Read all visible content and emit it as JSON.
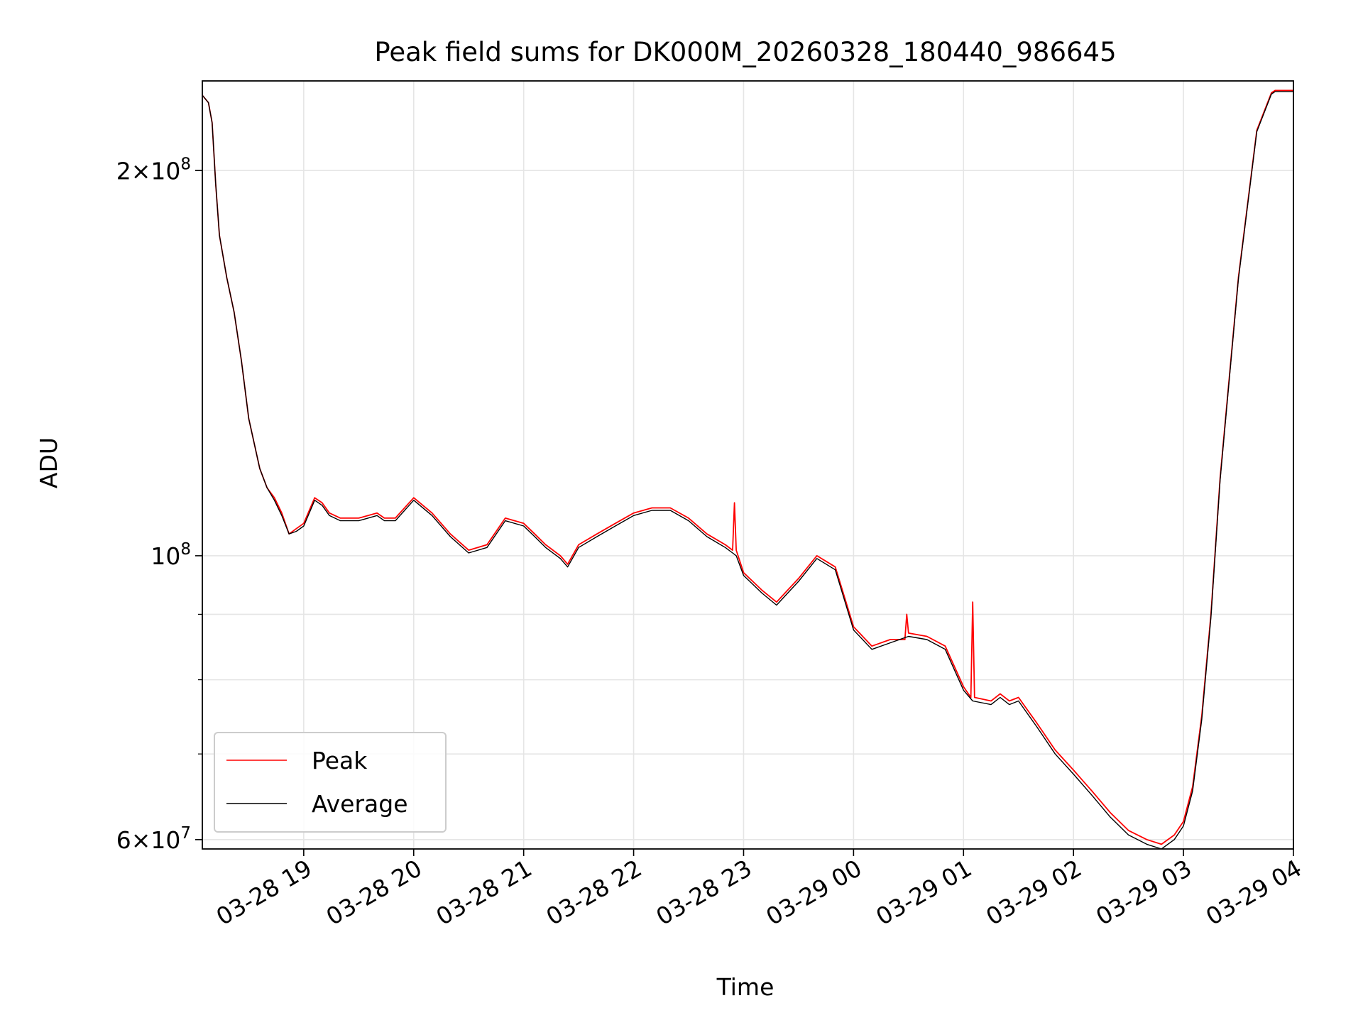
{
  "chart_data": {
    "type": "line",
    "title": "Peak field sums for DK000M_20260328_180440_986645",
    "xlabel": "Time",
    "ylabel": "ADU",
    "y_scale": "log",
    "ylim": [
      59000000,
      235000000
    ],
    "xlim": [
      "2026-03-28 18:04:40",
      "2026-03-29 04:00:00"
    ],
    "grid": true,
    "legend_position": "lower-left",
    "x_ticks": [
      {
        "t": "2026-03-28 19:00",
        "label": "03-28 19"
      },
      {
        "t": "2026-03-28 20:00",
        "label": "03-28 20"
      },
      {
        "t": "2026-03-28 21:00",
        "label": "03-28 21"
      },
      {
        "t": "2026-03-28 22:00",
        "label": "03-28 22"
      },
      {
        "t": "2026-03-28 23:00",
        "label": "03-28 23"
      },
      {
        "t": "2026-03-29 00:00",
        "label": "03-29 00"
      },
      {
        "t": "2026-03-29 01:00",
        "label": "03-29 01"
      },
      {
        "t": "2026-03-29 02:00",
        "label": "03-29 02"
      },
      {
        "t": "2026-03-29 03:00",
        "label": "03-29 03"
      },
      {
        "t": "2026-03-29 04:00",
        "label": "03-29 04"
      }
    ],
    "y_major_ticks": [
      {
        "value": 60000000,
        "mantissa": "6",
        "exponent": "7"
      },
      {
        "value": 100000000,
        "mantissa": "",
        "exponent": "8"
      },
      {
        "value": 200000000,
        "mantissa": "2",
        "exponent": "8"
      }
    ],
    "y_minor_ticks": [
      70000000,
      80000000,
      90000000
    ],
    "series": [
      {
        "name": "Peak",
        "color": "#ff0000",
        "x": [
          "2026-03-28 18:04:40",
          "2026-03-28 18:08",
          "2026-03-28 18:10",
          "2026-03-28 18:12",
          "2026-03-28 18:14",
          "2026-03-28 18:18",
          "2026-03-28 18:22",
          "2026-03-28 18:26",
          "2026-03-28 18:30",
          "2026-03-28 18:36",
          "2026-03-28 18:40",
          "2026-03-28 18:44",
          "2026-03-28 18:48",
          "2026-03-28 18:52",
          "2026-03-28 18:56",
          "2026-03-28 19:00",
          "2026-03-28 19:06",
          "2026-03-28 19:10",
          "2026-03-28 19:14",
          "2026-03-28 19:20",
          "2026-03-28 19:30",
          "2026-03-28 19:40",
          "2026-03-28 19:44",
          "2026-03-28 19:50",
          "2026-03-28 20:00",
          "2026-03-28 20:10",
          "2026-03-28 20:20",
          "2026-03-28 20:30",
          "2026-03-28 20:40",
          "2026-03-28 20:50",
          "2026-03-28 21:00",
          "2026-03-28 21:06",
          "2026-03-28 21:12",
          "2026-03-28 21:20",
          "2026-03-28 21:24",
          "2026-03-28 21:30",
          "2026-03-28 21:40",
          "2026-03-28 21:50",
          "2026-03-28 22:00",
          "2026-03-28 22:10",
          "2026-03-28 22:20",
          "2026-03-28 22:30",
          "2026-03-28 22:40",
          "2026-03-28 22:50",
          "2026-03-28 22:54",
          "2026-03-28 22:55",
          "2026-03-28 22:56",
          "2026-03-28 23:00",
          "2026-03-28 23:10",
          "2026-03-28 23:18",
          "2026-03-28 23:30",
          "2026-03-28 23:40",
          "2026-03-28 23:50",
          "2026-03-29 00:00",
          "2026-03-29 00:10",
          "2026-03-29 00:20",
          "2026-03-29 00:28",
          "2026-03-29 00:29",
          "2026-03-29 00:30",
          "2026-03-29 00:40",
          "2026-03-29 00:50",
          "2026-03-29 01:00",
          "2026-03-29 01:04",
          "2026-03-29 01:05",
          "2026-03-29 01:06",
          "2026-03-29 01:15",
          "2026-03-29 01:20",
          "2026-03-29 01:25",
          "2026-03-29 01:30",
          "2026-03-29 01:40",
          "2026-03-29 01:50",
          "2026-03-29 02:00",
          "2026-03-29 02:10",
          "2026-03-29 02:20",
          "2026-03-29 02:30",
          "2026-03-29 02:40",
          "2026-03-29 02:48",
          "2026-03-29 02:55",
          "2026-03-29 03:00",
          "2026-03-29 03:05",
          "2026-03-29 03:10",
          "2026-03-29 03:15",
          "2026-03-29 03:20",
          "2026-03-29 03:30",
          "2026-03-29 03:40",
          "2026-03-29 03:48",
          "2026-03-29 03:50",
          "2026-03-29 04:00"
        ],
        "y": [
          229000000,
          226000000,
          218000000,
          195000000,
          178000000,
          165000000,
          155000000,
          142000000,
          128000000,
          117000000,
          113000000,
          111000000,
          108000000,
          104000000,
          105000000,
          106000000,
          111000000,
          110000000,
          108000000,
          107000000,
          107000000,
          108000000,
          107000000,
          107000000,
          111000000,
          108000000,
          104000000,
          101000000,
          102000000,
          107000000,
          106000000,
          104000000,
          102000000,
          100000000,
          98500000,
          102000000,
          104000000,
          106000000,
          108000000,
          109000000,
          109000000,
          107000000,
          104000000,
          102000000,
          101000000,
          110000000,
          101000000,
          97000000,
          94000000,
          92000000,
          96000000,
          100000000,
          98000000,
          88000000,
          85000000,
          86000000,
          86000000,
          90000000,
          87000000,
          86500000,
          85000000,
          79000000,
          77500000,
          92000000,
          77500000,
          77000000,
          78000000,
          77000000,
          77500000,
          74000000,
          70500000,
          68000000,
          65500000,
          63000000,
          61000000,
          60000000,
          59500000,
          60500000,
          62000000,
          66000000,
          75000000,
          90000000,
          115000000,
          165000000,
          215000000,
          230000000,
          231000000,
          231000000
        ]
      },
      {
        "name": "Average",
        "color": "#000000",
        "x": [
          "2026-03-28 18:04:40",
          "2026-03-28 18:08",
          "2026-03-28 18:10",
          "2026-03-28 18:12",
          "2026-03-28 18:14",
          "2026-03-28 18:18",
          "2026-03-28 18:22",
          "2026-03-28 18:26",
          "2026-03-28 18:30",
          "2026-03-28 18:36",
          "2026-03-28 18:40",
          "2026-03-28 18:44",
          "2026-03-28 18:48",
          "2026-03-28 18:52",
          "2026-03-28 18:56",
          "2026-03-28 19:00",
          "2026-03-28 19:06",
          "2026-03-28 19:10",
          "2026-03-28 19:14",
          "2026-03-28 19:20",
          "2026-03-28 19:30",
          "2026-03-28 19:40",
          "2026-03-28 19:44",
          "2026-03-28 19:50",
          "2026-03-28 20:00",
          "2026-03-28 20:10",
          "2026-03-28 20:20",
          "2026-03-28 20:30",
          "2026-03-28 20:40",
          "2026-03-28 20:50",
          "2026-03-28 21:00",
          "2026-03-28 21:06",
          "2026-03-28 21:12",
          "2026-03-28 21:20",
          "2026-03-28 21:24",
          "2026-03-28 21:30",
          "2026-03-28 21:40",
          "2026-03-28 21:50",
          "2026-03-28 22:00",
          "2026-03-28 22:10",
          "2026-03-28 22:20",
          "2026-03-28 22:30",
          "2026-03-28 22:40",
          "2026-03-28 22:50",
          "2026-03-28 22:54",
          "2026-03-28 22:56",
          "2026-03-28 23:00",
          "2026-03-28 23:10",
          "2026-03-28 23:18",
          "2026-03-28 23:30",
          "2026-03-28 23:40",
          "2026-03-28 23:50",
          "2026-03-29 00:00",
          "2026-03-29 00:10",
          "2026-03-29 00:20",
          "2026-03-29 00:30",
          "2026-03-29 00:40",
          "2026-03-29 00:50",
          "2026-03-29 01:00",
          "2026-03-29 01:05",
          "2026-03-29 01:15",
          "2026-03-29 01:20",
          "2026-03-29 01:25",
          "2026-03-29 01:30",
          "2026-03-29 01:40",
          "2026-03-29 01:50",
          "2026-03-29 02:00",
          "2026-03-29 02:10",
          "2026-03-29 02:20",
          "2026-03-29 02:30",
          "2026-03-29 02:40",
          "2026-03-29 02:48",
          "2026-03-29 02:55",
          "2026-03-29 03:00",
          "2026-03-29 03:05",
          "2026-03-29 03:10",
          "2026-03-29 03:15",
          "2026-03-29 03:20",
          "2026-03-29 03:30",
          "2026-03-29 03:40",
          "2026-03-29 03:48",
          "2026-03-29 03:50",
          "2026-03-29 04:00"
        ],
        "y": [
          229000000,
          226000000,
          218000000,
          195000000,
          178000000,
          165000000,
          155000000,
          142000000,
          128000000,
          117000000,
          113000000,
          110500000,
          107500000,
          104000000,
          104500000,
          105500000,
          110500000,
          109500000,
          107500000,
          106500000,
          106500000,
          107500000,
          106500000,
          106500000,
          110500000,
          107500000,
          103500000,
          100500000,
          101500000,
          106500000,
          105500000,
          103500000,
          101500000,
          99500000,
          98000000,
          101500000,
          103500000,
          105500000,
          107500000,
          108500000,
          108500000,
          106500000,
          103500000,
          101500000,
          100500000,
          100000000,
          96500000,
          93500000,
          91500000,
          95500000,
          99500000,
          97500000,
          87500000,
          84500000,
          85500000,
          86500000,
          86000000,
          84500000,
          78500000,
          77000000,
          76500000,
          77500000,
          76500000,
          77000000,
          73500000,
          70000000,
          67500000,
          65000000,
          62500000,
          60500000,
          59500000,
          59000000,
          60000000,
          61500000,
          65500000,
          74500000,
          89500000,
          114500000,
          164500000,
          214500000,
          229500000,
          230500000,
          230500000
        ]
      }
    ]
  }
}
